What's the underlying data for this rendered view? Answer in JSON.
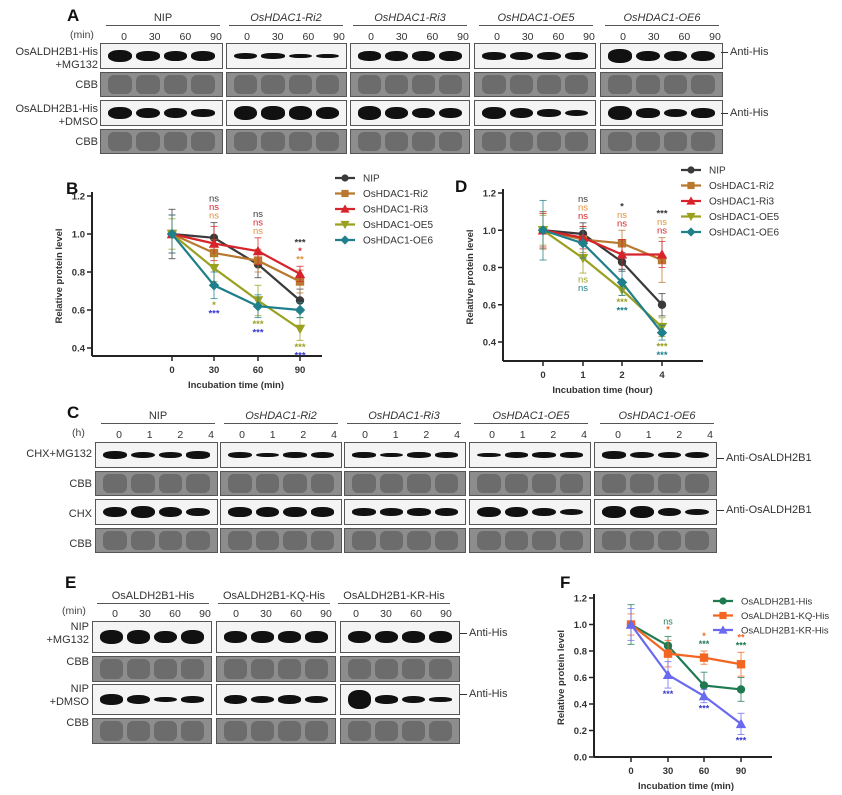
{
  "panel_A": {
    "letter": "A",
    "unit_label": "(min)",
    "groups": [
      {
        "name": "NIP",
        "italic_part": "",
        "suffix": "NIP"
      },
      {
        "name": "OsHDAC1-Ri2",
        "italic_part": "OsHDAC1",
        "suffix": "-Ri2"
      },
      {
        "name": "OsHDAC1-Ri3",
        "italic_part": "OsHDAC1",
        "suffix": "-Ri3"
      },
      {
        "name": "OsHDAC1-OE5",
        "italic_part": "OsHDAC1",
        "suffix": "-OE5"
      },
      {
        "name": "OsHDAC1-OE6",
        "italic_part": "OsHDAC1",
        "suffix": "-OE6"
      }
    ],
    "lanes": [
      "0",
      "30",
      "60",
      "90"
    ],
    "rows": [
      {
        "label_line1": "OsALDH2B1-His",
        "label_line2": "+MG132",
        "antibody": "Anti-His"
      },
      {
        "label_line1": "CBB",
        "label_line2": "",
        "antibody": ""
      },
      {
        "label_line1": "OsALDH2B1-His",
        "label_line2": "+DMSO",
        "antibody": "Anti-His"
      },
      {
        "label_line1": "CBB",
        "label_line2": "",
        "antibody": ""
      }
    ]
  },
  "panel_C": {
    "letter": "C",
    "unit_label": "(h)",
    "groups": [
      {
        "name": "NIP"
      },
      {
        "name": "OsHDAC1-Ri2"
      },
      {
        "name": "OsHDAC1-Ri3"
      },
      {
        "name": "OsHDAC1-OE5"
      },
      {
        "name": "OsHDAC1-OE6"
      }
    ],
    "lanes": [
      "0",
      "1",
      "2",
      "4"
    ],
    "rows": [
      {
        "label": "CHX+MG132",
        "antibody": "Anti-OsALDH2B1"
      },
      {
        "label": "CBB",
        "antibody": ""
      },
      {
        "label": "CHX",
        "antibody": "Anti-OsALDH2B1"
      },
      {
        "label": "CBB",
        "antibody": ""
      }
    ]
  },
  "panel_E": {
    "letter": "E",
    "unit_label": "(min)",
    "groups": [
      {
        "name": "OsALDH2B1-His"
      },
      {
        "name": "OsALDH2B1-KQ-His"
      },
      {
        "name": "OsALDH2B1-KR-His"
      }
    ],
    "lanes": [
      "0",
      "30",
      "60",
      "90"
    ],
    "rows": [
      {
        "label_line1": "NIP",
        "label_line2": "+MG132",
        "antibody": "Anti-His"
      },
      {
        "label_line1": "CBB",
        "label_line2": "",
        "antibody": ""
      },
      {
        "label_line1": "NIP",
        "label_line2": "+DMSO",
        "antibody": "Anti-His"
      },
      {
        "label_line1": "CBB",
        "label_line2": "",
        "antibody": ""
      }
    ]
  },
  "chart_data": [
    {
      "panel": "B",
      "type": "line",
      "title": "",
      "xlabel": "Incubation time (min)",
      "ylabel": "Relative protein level",
      "x": [
        0,
        30,
        60,
        90
      ],
      "categories": [
        "0",
        "30",
        "60",
        "90"
      ],
      "ylim": [
        0.35,
        1.2
      ],
      "yticks": [
        "0.4",
        "0.6",
        "0.8",
        "1.0",
        "1.2"
      ],
      "grid": false,
      "legend_position": "right",
      "series": [
        {
          "name": "NIP",
          "color": "#3a3a3a",
          "marker": "circle",
          "values": [
            1.0,
            0.98,
            0.84,
            0.65
          ],
          "errors": [
            0.13,
            0.08,
            0.07,
            0.06
          ]
        },
        {
          "name": "OsHDAC1-Ri2",
          "color": "#b8782e",
          "marker": "square",
          "values": [
            1.0,
            0.9,
            0.86,
            0.75
          ],
          "errors": [
            0.1,
            0.07,
            0.06,
            0.06
          ]
        },
        {
          "name": "OsHDAC1-Ri3",
          "color": "#d6242a",
          "marker": "triangle-up",
          "values": [
            1.0,
            0.95,
            0.91,
            0.79
          ],
          "errors": [
            0.1,
            0.09,
            0.07,
            0.04
          ]
        },
        {
          "name": "OsHDAC1-OE5",
          "color": "#9aa020",
          "marker": "triangle-down",
          "values": [
            1.0,
            0.82,
            0.65,
            0.5
          ],
          "errors": [
            0.08,
            0.07,
            0.08,
            0.06
          ]
        },
        {
          "name": "OsHDAC1-OE6",
          "color": "#1f7f8a",
          "marker": "diamond",
          "values": [
            1.0,
            0.73,
            0.62,
            0.6
          ],
          "errors": [
            0.1,
            0.07,
            0.06,
            0.04
          ]
        }
      ],
      "annotations": [
        {
          "x": 30,
          "stack": [
            {
              "text": "ns",
              "color": "#3a3a3a"
            },
            {
              "text": "ns",
              "color": "#d6242a"
            },
            {
              "text": "ns",
              "color": "#e0913a"
            }
          ],
          "below": [
            {
              "text": "*",
              "color": "#9aa020"
            },
            {
              "text": "***",
              "color": "#3b3bd0"
            }
          ]
        },
        {
          "x": 60,
          "stack": [
            {
              "text": "ns",
              "color": "#3a3a3a"
            },
            {
              "text": "ns",
              "color": "#d6242a"
            },
            {
              "text": "ns",
              "color": "#e0913a"
            }
          ],
          "below": [
            {
              "text": "***",
              "color": "#9aa020"
            },
            {
              "text": "***",
              "color": "#3b3bd0"
            }
          ]
        },
        {
          "x": 90,
          "stack": [
            {
              "text": "***",
              "color": "#3a3a3a"
            },
            {
              "text": "*",
              "color": "#d6242a"
            },
            {
              "text": "**",
              "color": "#e0913a"
            }
          ],
          "below": [
            {
              "text": "***",
              "color": "#9aa020"
            },
            {
              "text": "***",
              "color": "#3b3bd0"
            }
          ]
        }
      ]
    },
    {
      "panel": "D",
      "type": "line",
      "title": "",
      "xlabel": "Incubation time (hour)",
      "ylabel": "Relative protein level",
      "x": [
        0,
        1,
        2,
        4
      ],
      "categories": [
        "0",
        "1",
        "2",
        "4"
      ],
      "ylim": [
        0.35,
        1.2
      ],
      "yticks": [
        "0.4",
        "0.6",
        "0.8",
        "1.0",
        "1.2"
      ],
      "grid": false,
      "legend_position": "right",
      "series": [
        {
          "name": "NIP",
          "color": "#3a3a3a",
          "marker": "circle",
          "values": [
            1.0,
            0.98,
            0.83,
            0.6
          ],
          "errors": [
            0.1,
            0.06,
            0.05,
            0.06
          ]
        },
        {
          "name": "OsHDAC1-Ri2",
          "color": "#b8782e",
          "marker": "square",
          "values": [
            1.0,
            0.95,
            0.93,
            0.84
          ],
          "errors": [
            0.1,
            0.07,
            0.07,
            0.12
          ]
        },
        {
          "name": "OsHDAC1-Ri3",
          "color": "#d6242a",
          "marker": "triangle-up",
          "values": [
            1.0,
            0.96,
            0.87,
            0.87
          ],
          "errors": [
            0.09,
            0.06,
            0.08,
            0.07
          ]
        },
        {
          "name": "OsHDAC1-OE5",
          "color": "#9aa020",
          "marker": "triangle-down",
          "values": [
            1.0,
            0.85,
            0.68,
            0.48
          ],
          "errors": [
            0.08,
            0.08,
            0.03,
            0.05
          ]
        },
        {
          "name": "OsHDAC1-OE6",
          "color": "#1f7f8a",
          "marker": "diamond",
          "values": [
            1.0,
            0.93,
            0.72,
            0.45
          ],
          "errors": [
            0.16,
            0.08,
            0.07,
            0.04
          ]
        }
      ],
      "annotations": [
        {
          "x": 1,
          "stack": [
            {
              "text": "ns",
              "color": "#3a3a3a"
            },
            {
              "text": "ns",
              "color": "#e0913a"
            },
            {
              "text": "ns",
              "color": "#d6242a"
            }
          ],
          "below": [
            {
              "text": "ns",
              "color": "#9aa020"
            },
            {
              "text": "ns",
              "color": "#1f7f8a"
            }
          ]
        },
        {
          "x": 2,
          "stack": [
            {
              "text": "*",
              "color": "#3a3a3a"
            },
            {
              "text": "ns",
              "color": "#e0913a"
            },
            {
              "text": "ns",
              "color": "#d6242a"
            }
          ],
          "below": [
            {
              "text": "***",
              "color": "#9aa020"
            },
            {
              "text": "***",
              "color": "#1f7f8a"
            }
          ]
        },
        {
          "x": 4,
          "stack": [
            {
              "text": "***",
              "color": "#3a3a3a"
            },
            {
              "text": "ns",
              "color": "#e0913a"
            },
            {
              "text": "ns",
              "color": "#d6242a"
            }
          ],
          "below": [
            {
              "text": "***",
              "color": "#9aa020"
            },
            {
              "text": "***",
              "color": "#1f7f8a"
            }
          ]
        }
      ]
    },
    {
      "panel": "F",
      "type": "line",
      "title": "",
      "xlabel": "Incubation time (min)",
      "ylabel": "Relative protein level",
      "x": [
        0,
        30,
        60,
        90
      ],
      "categories": [
        "0",
        "30",
        "60",
        "90"
      ],
      "ylim": [
        0.0,
        1.2
      ],
      "yticks": [
        "0.0",
        "0.2",
        "0.4",
        "0.6",
        "0.8",
        "1.0",
        "1.2"
      ],
      "grid": false,
      "legend_position": "top-right",
      "series": [
        {
          "name": "OsALDH2B1-His",
          "color": "#1f7a52",
          "marker": "circle",
          "values": [
            1.0,
            0.84,
            0.54,
            0.51
          ],
          "errors": [
            0.15,
            0.07,
            0.1,
            0.09
          ]
        },
        {
          "name": "OsALDH2B1-KQ-His",
          "color": "#f26522",
          "marker": "square",
          "values": [
            1.0,
            0.78,
            0.75,
            0.7
          ],
          "errors": [
            0.08,
            0.1,
            0.05,
            0.09
          ]
        },
        {
          "name": "OsALDH2B1-KR-His",
          "color": "#6a6af0",
          "marker": "triangle-up",
          "values": [
            1.0,
            0.62,
            0.46,
            0.25
          ],
          "errors": [
            0.12,
            0.1,
            0.05,
            0.08
          ]
        }
      ],
      "annotations": [
        {
          "x": 30,
          "stack": [
            {
              "text": "ns",
              "color": "#1f7a52"
            },
            {
              "text": "*",
              "color": "#f26522"
            }
          ],
          "below": [
            {
              "text": "***",
              "color": "#3b3bd0"
            }
          ]
        },
        {
          "x": 60,
          "stack": [
            {
              "text": "*",
              "color": "#f26522"
            },
            {
              "text": "***",
              "color": "#1f7a52"
            }
          ],
          "below": [
            {
              "text": "***",
              "color": "#3b3bd0"
            }
          ]
        },
        {
          "x": 90,
          "stack": [
            {
              "text": "**",
              "color": "#f26522"
            },
            {
              "text": "***",
              "color": "#1f7a52"
            }
          ],
          "below": [
            {
              "text": "***",
              "color": "#3b3bd0"
            }
          ]
        }
      ]
    }
  ],
  "labels": {
    "B": "B",
    "D": "D",
    "F": "F",
    "B_xlabel": "Incubation time (min)",
    "D_xlabel": "Incubation time (hour)",
    "F_xlabel": "Incubation time (min)",
    "ylabel": "Relative protein level"
  }
}
